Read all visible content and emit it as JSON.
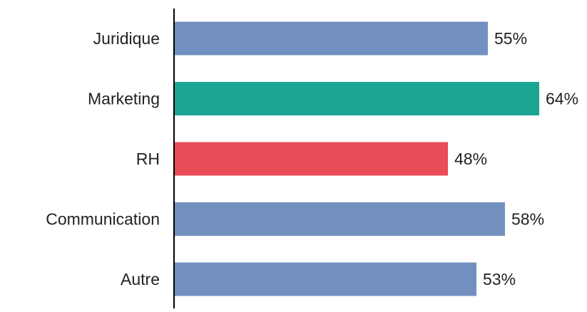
{
  "chart_data": {
    "type": "bar",
    "orientation": "horizontal",
    "title": "",
    "xlabel": "",
    "ylabel": "",
    "categories": [
      "Juridique",
      "Marketing",
      "RH",
      "Communication",
      "Autre"
    ],
    "values": [
      55,
      64,
      48,
      58,
      53
    ],
    "value_labels": [
      "55%",
      "64%",
      "48%",
      "58%",
      "53%"
    ],
    "colors": [
      "#7190c0",
      "#1ca593",
      "#e84c57",
      "#7190c0",
      "#7190c0"
    ],
    "xlim": [
      0,
      100
    ],
    "grid": false,
    "legend": "none"
  }
}
